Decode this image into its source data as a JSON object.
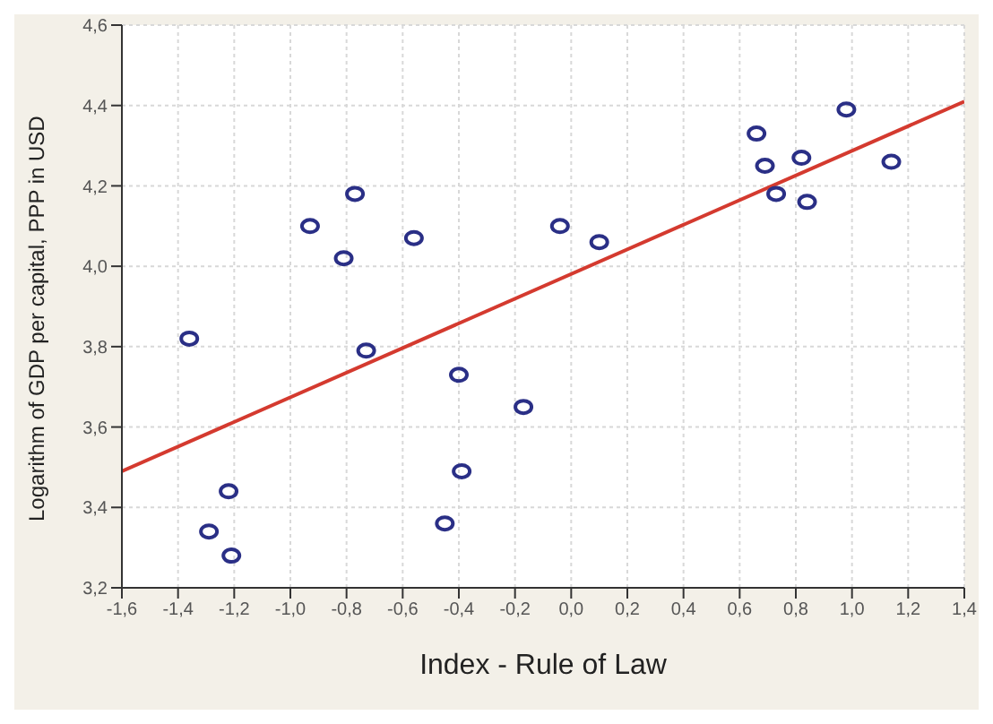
{
  "chart_data": {
    "type": "scatter",
    "xlabel": "Index - Rule of Law",
    "ylabel": "Logarithm of GDP per capital, PPP in USD",
    "xlim": [
      -1.6,
      1.4
    ],
    "ylim": [
      3.2,
      4.6
    ],
    "xticks": [
      {
        "value": -1.6,
        "label": "-1,6"
      },
      {
        "value": -1.4,
        "label": "-1,4"
      },
      {
        "value": -1.2,
        "label": "-1,2"
      },
      {
        "value": -1.0,
        "label": "-1,0"
      },
      {
        "value": -0.8,
        "label": "-0,8"
      },
      {
        "value": -0.6,
        "label": "-0,6"
      },
      {
        "value": -0.4,
        "label": "-0,4"
      },
      {
        "value": -0.2,
        "label": "-0,2"
      },
      {
        "value": 0,
        "label": "0,0"
      },
      {
        "value": 0.2,
        "label": "0,2"
      },
      {
        "value": 0.4,
        "label": "0,4"
      },
      {
        "value": 0.6,
        "label": "0,6"
      },
      {
        "value": 0.8,
        "label": "0,8"
      },
      {
        "value": 1.0,
        "label": "1,0"
      },
      {
        "value": 1.2,
        "label": "1,2"
      },
      {
        "value": 1.4,
        "label": "1,4"
      }
    ],
    "yticks": [
      {
        "value": 3.2,
        "label": "3,2"
      },
      {
        "value": 3.4,
        "label": "3,4"
      },
      {
        "value": 3.6,
        "label": "3,6"
      },
      {
        "value": 3.8,
        "label": "3,8"
      },
      {
        "value": 4.0,
        "label": "4,0"
      },
      {
        "value": 4.2,
        "label": "4,2"
      },
      {
        "value": 4.4,
        "label": "4,4"
      },
      {
        "value": 4.6,
        "label": "4,6"
      }
    ],
    "grid": true,
    "marker": "circle",
    "series": [
      {
        "color": "#2a2f86",
        "x": [
          -1.36,
          -1.29,
          -1.22,
          -1.21,
          -0.93,
          -0.81,
          -0.77,
          -0.73,
          -0.56,
          -0.45,
          -0.4,
          -0.39,
          -0.17,
          -0.04,
          0.1,
          0.66,
          0.69,
          0.73,
          0.82,
          0.84,
          0.98,
          1.14
        ],
        "values": [
          3.82,
          3.34,
          3.44,
          3.28,
          4.1,
          4.02,
          4.18,
          3.79,
          4.07,
          3.36,
          3.73,
          3.49,
          3.65,
          4.1,
          4.06,
          4.33,
          4.25,
          4.18,
          4.27,
          4.16,
          4.39,
          4.26
        ]
      },
      {
        "type": "line",
        "marker": "none",
        "color": "#d43a2f",
        "x": [
          -1.6,
          1.4
        ],
        "values": [
          3.49,
          4.41
        ]
      }
    ]
  }
}
